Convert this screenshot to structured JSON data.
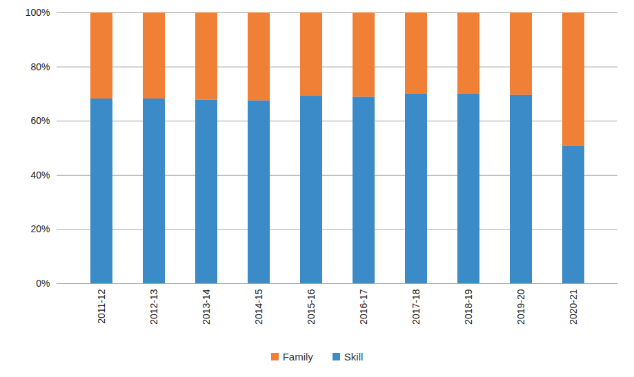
{
  "chart_data": {
    "type": "bar",
    "stacked": true,
    "grid": true,
    "legend": "bottom",
    "categories": [
      "2011-12",
      "2012-13",
      "2013-14",
      "2014-15",
      "2015-16",
      "2016-17",
      "2017-18",
      "2018-19",
      "2019-20",
      "2020-21"
    ],
    "series": [
      {
        "name": "Family",
        "color": "#f08036",
        "values": [
          31.8,
          31.8,
          32.2,
          32.5,
          30.8,
          31.2,
          30.0,
          30.0,
          30.5,
          49.2
        ]
      },
      {
        "name": "Skill",
        "color": "#3b8bc9",
        "values": [
          68.2,
          68.2,
          67.8,
          67.5,
          69.2,
          68.8,
          70.0,
          70.0,
          69.5,
          50.8
        ]
      }
    ],
    "ylim": [
      0,
      100
    ],
    "yticks": [
      {
        "value": 0,
        "label": "0%"
      },
      {
        "value": 20,
        "label": "20%"
      },
      {
        "value": 40,
        "label": "40%"
      },
      {
        "value": 60,
        "label": "60%"
      },
      {
        "value": 80,
        "label": "80%"
      },
      {
        "value": 100,
        "label": "100%"
      }
    ]
  }
}
